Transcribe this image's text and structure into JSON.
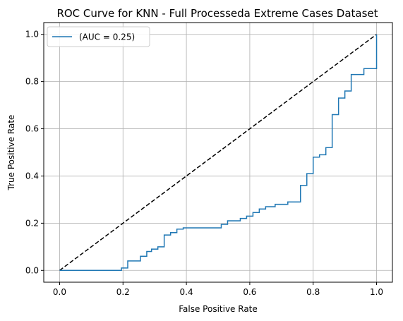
{
  "chart_data": {
    "type": "line",
    "title": "ROC Curve for KNN - Full Processeda Extreme Cases Dataset",
    "xlabel": "False Positive Rate",
    "ylabel": "True Positive Rate",
    "xlim": [
      -0.05,
      1.05
    ],
    "ylim": [
      -0.05,
      1.05
    ],
    "xticks": [
      "0.0",
      "0.2",
      "0.4",
      "0.6",
      "0.8",
      "1.0"
    ],
    "yticks": [
      "0.0",
      "0.2",
      "0.4",
      "0.6",
      "0.8",
      "1.0"
    ],
    "grid": true,
    "legend_position": "upper-left",
    "series": [
      {
        "name": "(AUC = 0.25)",
        "color": "#1f77b4",
        "style": "steps",
        "x": [
          0.0,
          0.195,
          0.195,
          0.215,
          0.215,
          0.255,
          0.255,
          0.275,
          0.275,
          0.29,
          0.29,
          0.31,
          0.31,
          0.33,
          0.33,
          0.35,
          0.35,
          0.37,
          0.37,
          0.39,
          0.39,
          0.51,
          0.51,
          0.53,
          0.53,
          0.57,
          0.57,
          0.59,
          0.59,
          0.61,
          0.61,
          0.63,
          0.63,
          0.65,
          0.65,
          0.68,
          0.68,
          0.72,
          0.72,
          0.76,
          0.76,
          0.78,
          0.78,
          0.8,
          0.8,
          0.82,
          0.82,
          0.84,
          0.84,
          0.86,
          0.86,
          0.88,
          0.88,
          0.9,
          0.9,
          0.92,
          0.92,
          0.96,
          0.96,
          1.0,
          1.0
        ],
        "y": [
          0.0,
          0.0,
          0.01,
          0.01,
          0.04,
          0.04,
          0.06,
          0.06,
          0.08,
          0.08,
          0.09,
          0.09,
          0.1,
          0.1,
          0.15,
          0.15,
          0.16,
          0.16,
          0.175,
          0.175,
          0.18,
          0.18,
          0.195,
          0.195,
          0.21,
          0.21,
          0.22,
          0.22,
          0.23,
          0.23,
          0.245,
          0.245,
          0.26,
          0.26,
          0.27,
          0.27,
          0.28,
          0.28,
          0.29,
          0.29,
          0.36,
          0.36,
          0.41,
          0.41,
          0.48,
          0.48,
          0.49,
          0.49,
          0.52,
          0.52,
          0.66,
          0.66,
          0.73,
          0.73,
          0.76,
          0.76,
          0.83,
          0.83,
          0.855,
          0.855,
          1.0
        ]
      },
      {
        "name": "",
        "color": "#000000",
        "dashed": true,
        "x": [
          0.0,
          1.0
        ],
        "y": [
          0.0,
          1.0
        ]
      }
    ]
  }
}
